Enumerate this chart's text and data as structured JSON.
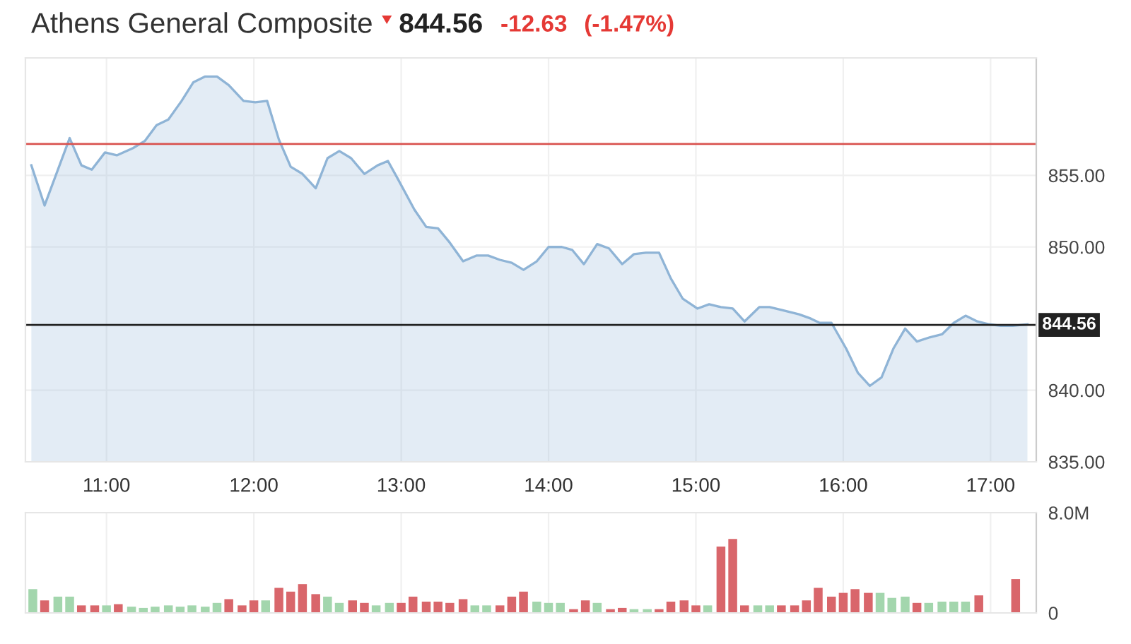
{
  "chart_data": [
    {
      "type": "area",
      "title": "Athens General Composite",
      "annotations": [
        "844.56",
        "-12.63",
        "(-1.47%)"
      ],
      "series": [
        {
          "color": "#8fb4d6",
          "x": [
            10.49,
            10.58,
            10.75,
            10.83,
            10.9,
            10.99,
            11.07,
            11.18,
            11.26,
            11.34,
            11.42,
            11.51,
            11.59,
            11.67,
            11.75,
            11.83,
            11.93,
            12.01,
            12.09,
            12.17,
            12.25,
            12.33,
            12.42,
            12.5,
            12.58,
            12.66,
            12.75,
            12.84,
            12.91,
            12.98,
            13.09,
            13.17,
            13.25,
            13.33,
            13.42,
            13.51,
            13.59,
            13.67,
            13.75,
            13.83,
            13.92,
            14.0,
            14.09,
            14.16,
            14.24,
            14.33,
            14.41,
            14.5,
            14.58,
            14.66,
            14.75,
            14.83,
            14.91,
            15.01,
            15.09,
            15.17,
            15.25,
            15.33,
            15.43,
            15.5,
            15.58,
            15.7,
            15.78,
            15.84,
            15.92,
            16.02,
            16.1,
            16.18,
            16.26,
            16.34,
            16.42,
            16.5,
            16.59,
            16.67,
            16.75,
            16.83,
            16.91,
            16.99,
            17.07,
            17.15,
            17.25
          ],
          "values": [
            855.7,
            852.9,
            857.6,
            855.7,
            855.4,
            856.6,
            856.4,
            856.9,
            857.4,
            858.5,
            858.9,
            860.2,
            861.5,
            861.9,
            861.9,
            861.3,
            860.2,
            860.1,
            860.2,
            857.5,
            855.6,
            855.1,
            854.1,
            856.2,
            856.7,
            856.2,
            855.1,
            855.7,
            856.0,
            854.7,
            852.6,
            851.4,
            851.3,
            850.3,
            849.0,
            849.4,
            849.4,
            849.1,
            848.9,
            848.4,
            849.0,
            850.0,
            850.0,
            849.8,
            848.8,
            850.2,
            849.9,
            848.8,
            849.5,
            849.6,
            849.6,
            847.8,
            846.4,
            845.7,
            846.0,
            845.8,
            845.7,
            844.8,
            845.8,
            845.8,
            845.6,
            845.3,
            845.0,
            844.7,
            844.7,
            842.9,
            841.2,
            840.3,
            840.9,
            842.9,
            844.3,
            843.4,
            843.7,
            843.9,
            844.7,
            845.2,
            844.8,
            844.6,
            844.5,
            844.5,
            844.6
          ]
        }
      ],
      "xlim": [
        10.45,
        17.31
      ],
      "ylim": [
        835,
        863.2
      ],
      "xticks": [
        {
          "value": 11,
          "label": "11:00"
        },
        {
          "value": 12,
          "label": "12:00"
        },
        {
          "value": 13,
          "label": "13:00"
        },
        {
          "value": 14,
          "label": "14:00"
        },
        {
          "value": 15,
          "label": "15:00"
        },
        {
          "value": 16,
          "label": "16:00"
        },
        {
          "value": 17,
          "label": "17:00"
        }
      ],
      "yticks": [
        {
          "value": 835,
          "label": "835.00"
        },
        {
          "value": 840,
          "label": "840.00"
        },
        {
          "value": 850,
          "label": "850.00"
        },
        {
          "value": 855,
          "label": "855.00"
        }
      ],
      "ref_lines": [
        {
          "axis": "y",
          "value": 857.19,
          "label": null,
          "color": "#d9534f"
        },
        {
          "axis": "y",
          "value": 844.56,
          "label": "844.56",
          "color": "#222222"
        }
      ],
      "grid": true
    },
    {
      "type": "bar",
      "x": [
        10.5,
        10.58,
        10.67,
        10.75,
        10.83,
        10.92,
        11,
        11.08,
        11.17,
        11.25,
        11.33,
        11.42,
        11.5,
        11.58,
        11.67,
        11.75,
        11.83,
        11.92,
        12,
        12.08,
        12.17,
        12.25,
        12.33,
        12.42,
        12.5,
        12.58,
        12.67,
        12.75,
        12.83,
        12.92,
        13,
        13.08,
        13.17,
        13.25,
        13.33,
        13.42,
        13.5,
        13.58,
        13.67,
        13.75,
        13.83,
        13.92,
        14,
        14.08,
        14.17,
        14.25,
        14.33,
        14.42,
        14.5,
        14.58,
        14.67,
        14.75,
        14.83,
        14.92,
        15,
        15.08,
        15.17,
        15.25,
        15.33,
        15.42,
        15.5,
        15.58,
        15.67,
        15.75,
        15.83,
        15.92,
        16,
        16.08,
        16.17,
        16.25,
        16.33,
        16.42,
        16.5,
        16.58,
        16.67,
        16.75,
        16.83,
        16.92,
        17,
        17.08,
        17.17
      ],
      "values": [
        1.9,
        1.0,
        1.3,
        1.3,
        0.6,
        0.6,
        0.6,
        0.7,
        0.5,
        0.4,
        0.5,
        0.6,
        0.5,
        0.6,
        0.5,
        0.8,
        1.1,
        0.6,
        1.0,
        1.0,
        2.0,
        1.7,
        2.3,
        1.5,
        1.3,
        0.8,
        1.0,
        0.8,
        0.6,
        0.8,
        0.8,
        1.3,
        0.9,
        0.9,
        0.8,
        1.1,
        0.6,
        0.6,
        0.6,
        1.3,
        1.7,
        0.9,
        0.8,
        0.8,
        0.3,
        1.0,
        0.8,
        0.3,
        0.4,
        0.3,
        0.3,
        0.3,
        0.9,
        1.0,
        0.6,
        0.6,
        5.3,
        5.9,
        0.6,
        0.6,
        0.6,
        0.6,
        0.6,
        1.0,
        2.0,
        1.3,
        1.6,
        1.9,
        1.6,
        1.6,
        1.2,
        1.3,
        0.8,
        0.8,
        0.9,
        0.9,
        0.9,
        1.4,
        null,
        null,
        2.7
      ],
      "colors": [
        "#a3d6ad",
        "#d9666b",
        "#a3d6ad",
        "#a3d6ad",
        "#d9666b",
        "#d9666b",
        "#a3d6ad",
        "#d9666b",
        "#a3d6ad",
        "#a3d6ad",
        "#a3d6ad",
        "#a3d6ad",
        "#a3d6ad",
        "#a3d6ad",
        "#a3d6ad",
        "#a3d6ad",
        "#d9666b",
        "#d9666b",
        "#d9666b",
        "#a3d6ad",
        "#d9666b",
        "#d9666b",
        "#d9666b",
        "#d9666b",
        "#a3d6ad",
        "#a3d6ad",
        "#d9666b",
        "#d9666b",
        "#a3d6ad",
        "#a3d6ad",
        "#d9666b",
        "#d9666b",
        "#d9666b",
        "#d9666b",
        "#d9666b",
        "#d9666b",
        "#a3d6ad",
        "#a3d6ad",
        "#d9666b",
        "#d9666b",
        "#d9666b",
        "#a3d6ad",
        "#a3d6ad",
        "#a3d6ad",
        "#d9666b",
        "#d9666b",
        "#a3d6ad",
        "#d9666b",
        "#d9666b",
        "#a3d6ad",
        "#a3d6ad",
        "#d9666b",
        "#d9666b",
        "#d9666b",
        "#d9666b",
        "#a3d6ad",
        "#d9666b",
        "#d9666b",
        "#d9666b",
        "#a3d6ad",
        "#a3d6ad",
        "#d9666b",
        "#d9666b",
        "#d9666b",
        "#d9666b",
        "#d9666b",
        "#d9666b",
        "#d9666b",
        "#d9666b",
        "#a3d6ad",
        "#a3d6ad",
        "#a3d6ad",
        "#d9666b",
        "#a3d6ad",
        "#a3d6ad",
        "#a3d6ad",
        "#a3d6ad",
        "#d9666b",
        "#d9666b",
        "#d9666b",
        "#d9666b"
      ],
      "xlim": [
        10.45,
        17.31
      ],
      "ylim": [
        0,
        8
      ],
      "xticks": [
        {
          "value": 11,
          "label": null
        },
        {
          "value": 12,
          "label": null
        },
        {
          "value": 13,
          "label": null
        },
        {
          "value": 14,
          "label": null
        },
        {
          "value": 15,
          "label": null
        },
        {
          "value": 16,
          "label": null
        },
        {
          "value": 17,
          "label": null
        }
      ],
      "yticks": [
        {
          "value": 0,
          "label": "0"
        },
        {
          "value": 8,
          "label": "8.0M"
        }
      ],
      "tick_labels": "y",
      "grid": "x"
    }
  ]
}
